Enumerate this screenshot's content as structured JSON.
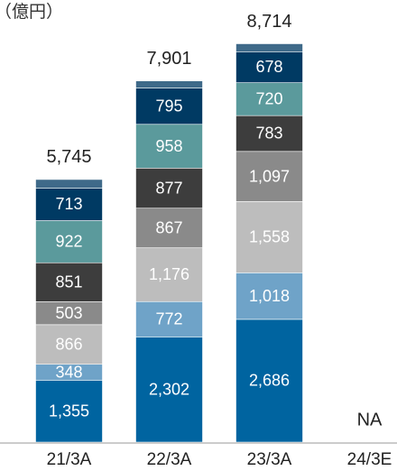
{
  "chart_data": {
    "type": "stacked_bar",
    "title": "（億円）",
    "categories": [
      "21/3A",
      "22/3A",
      "23/3A",
      "24/3E"
    ],
    "ylim": [
      0,
      9000
    ],
    "series": [
      {
        "color": "#0064a0",
        "values": [
          1355,
          2302,
          2686,
          null
        ],
        "value_labels": [
          "1,355",
          "2,302",
          "2,686",
          null
        ]
      },
      {
        "color": "#6fa3c8",
        "values": [
          348,
          772,
          1018,
          null
        ],
        "value_labels": [
          "348",
          "772",
          "1,018",
          null
        ]
      },
      {
        "color": "#bdbdbd",
        "values": [
          866,
          1176,
          1558,
          null
        ],
        "value_labels": [
          "866",
          "1,176",
          "1,558",
          null
        ]
      },
      {
        "color": "#8a8a8a",
        "values": [
          503,
          867,
          1097,
          null
        ],
        "value_labels": [
          "503",
          "867",
          "1,097",
          null
        ]
      },
      {
        "color": "#3d3d3d",
        "values": [
          851,
          877,
          783,
          null
        ],
        "value_labels": [
          "851",
          "877",
          "783",
          null
        ]
      },
      {
        "color": "#5b9a9c",
        "values": [
          922,
          958,
          720,
          null
        ],
        "value_labels": [
          "922",
          "958",
          "720",
          null
        ]
      },
      {
        "color": "#003a63",
        "values": [
          713,
          795,
          678,
          null
        ],
        "value_labels": [
          "713",
          "795",
          "678",
          null
        ]
      },
      {
        "color": "#3f6a89",
        "values": [
          187,
          154,
          174,
          null
        ]
      }
    ],
    "totals": [
      5745,
      7901,
      8714,
      null
    ],
    "total_labels": [
      "5,745",
      "7,901",
      "8,714",
      "NA"
    ]
  }
}
